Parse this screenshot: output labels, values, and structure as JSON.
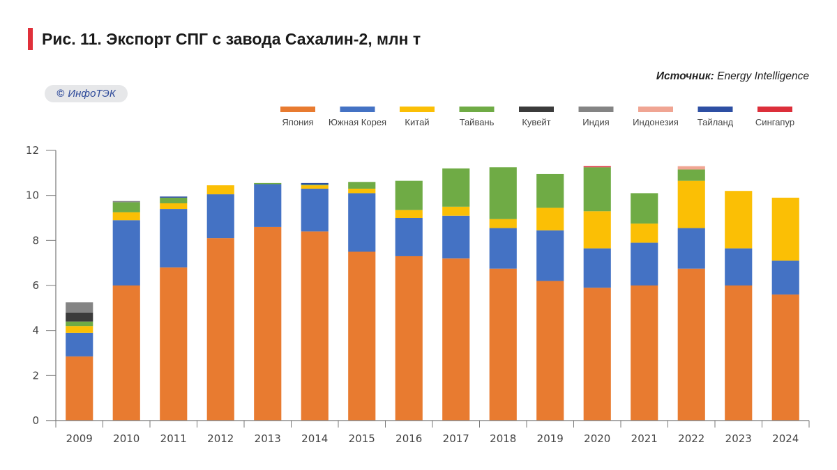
{
  "header": {
    "title": "Рис. 11. Экспорт СПГ с завода Сахалин-2, млн т",
    "source_label": "Источник:",
    "source_value": "Energy Intelligence",
    "badge_symbol": "©",
    "badge_text": "ИнфоТЭК",
    "accent_color": "#e0303a"
  },
  "chart_data": {
    "type": "bar",
    "stacked": true,
    "title": "Рис. 11. Экспорт СПГ с завода Сахалин-2, млн т",
    "xlabel": "",
    "ylabel": "млн т",
    "ylim": [
      0,
      12
    ],
    "yticks": [
      0,
      2,
      4,
      6,
      8,
      10,
      12
    ],
    "grid": false,
    "legend_position": "top-right",
    "categories": [
      "2009",
      "2010",
      "2011",
      "2012",
      "2013",
      "2014",
      "2015",
      "2016",
      "2017",
      "2018",
      "2019",
      "2020",
      "2021",
      "2022",
      "2023",
      "2024"
    ],
    "series": [
      {
        "name": "Япония",
        "color": "#e87b30",
        "values": [
          2.85,
          6.0,
          6.8,
          8.1,
          8.6,
          8.4,
          7.5,
          7.3,
          7.2,
          6.75,
          6.2,
          5.9,
          6.0,
          6.75,
          6.0,
          5.6
        ]
      },
      {
        "name": "Южная Корея",
        "color": "#4472c4",
        "values": [
          1.05,
          2.9,
          2.6,
          1.95,
          1.9,
          1.9,
          2.6,
          1.7,
          1.9,
          1.8,
          2.25,
          1.75,
          1.9,
          1.8,
          1.65,
          1.5
        ]
      },
      {
        "name": "Китай",
        "color": "#fbbf05",
        "values": [
          0.3,
          0.35,
          0.25,
          0.4,
          0,
          0.15,
          0.2,
          0.35,
          0.4,
          0.4,
          1.0,
          1.65,
          0.85,
          2.1,
          2.55,
          2.8
        ]
      },
      {
        "name": "Тайвань",
        "color": "#6fab45",
        "values": [
          0.2,
          0.45,
          0.25,
          0,
          0.05,
          0.03,
          0.3,
          1.3,
          1.7,
          2.3,
          1.5,
          1.95,
          1.35,
          0.5,
          0,
          0
        ]
      },
      {
        "name": "Кувейт",
        "color": "#3b3b3b",
        "values": [
          0.4,
          0,
          0,
          0,
          0,
          0,
          0,
          0,
          0,
          0,
          0,
          0,
          0,
          0,
          0,
          0
        ]
      },
      {
        "name": "Индия",
        "color": "#848484",
        "values": [
          0.45,
          0.05,
          0,
          0,
          0,
          0,
          0,
          0,
          0,
          0,
          0,
          0,
          0,
          0,
          0,
          0
        ]
      },
      {
        "name": "Индонезия",
        "color": "#f0a593",
        "values": [
          0,
          0,
          0,
          0,
          0,
          0,
          0,
          0,
          0,
          0,
          0,
          0,
          0,
          0.15,
          0,
          0
        ]
      },
      {
        "name": "Тайланд",
        "color": "#2d4fa3",
        "values": [
          0,
          0,
          0.05,
          0,
          0,
          0.07,
          0,
          0,
          0,
          0,
          0,
          0,
          0,
          0,
          0,
          0
        ]
      },
      {
        "name": "Сингапур",
        "color": "#dc2f3a",
        "values": [
          0,
          0,
          0,
          0,
          0,
          0,
          0,
          0,
          0,
          0,
          0,
          0.05,
          0,
          0,
          0,
          0
        ]
      }
    ]
  }
}
